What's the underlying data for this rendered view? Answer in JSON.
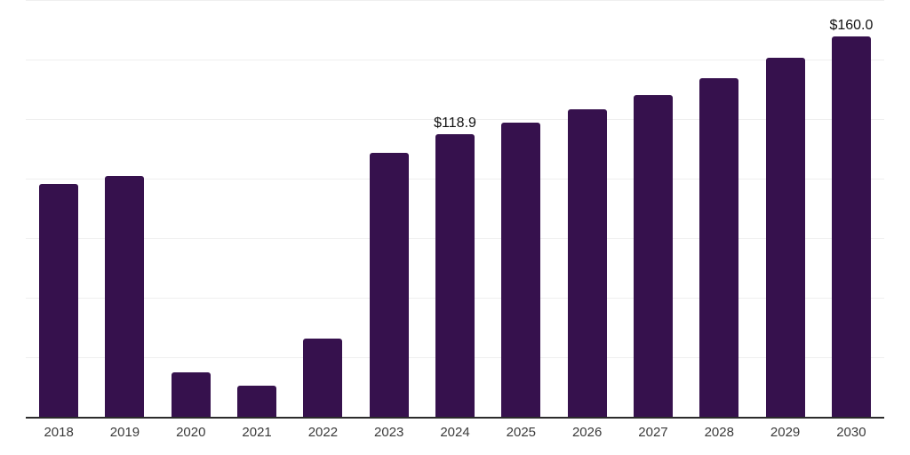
{
  "chart_data": {
    "type": "bar",
    "title": "",
    "xlabel": "",
    "ylabel": "",
    "categories": [
      "2018",
      "2019",
      "2020",
      "2021",
      "2022",
      "2023",
      "2024",
      "2025",
      "2026",
      "2027",
      "2028",
      "2029",
      "2030"
    ],
    "values": [
      98.0,
      101.5,
      19.0,
      13.4,
      33.2,
      111.2,
      118.9,
      123.7,
      129.3,
      135.6,
      142.7,
      151.0,
      160.0
    ],
    "data_labels": {
      "2024": "$118.9",
      "2030": "$160.0"
    },
    "ylim": [
      0,
      175
    ],
    "gridline_step": 25,
    "grid": true,
    "legend": false,
    "y_axis_ticks_visible": false,
    "bar_color": "#36114D",
    "gridline_color": "#EFEFEF",
    "axis_color": "#2B2B2B",
    "tick_label_color": "#3A3A3A",
    "data_label_color": "#121212",
    "background_color": "#FFFFFF"
  }
}
